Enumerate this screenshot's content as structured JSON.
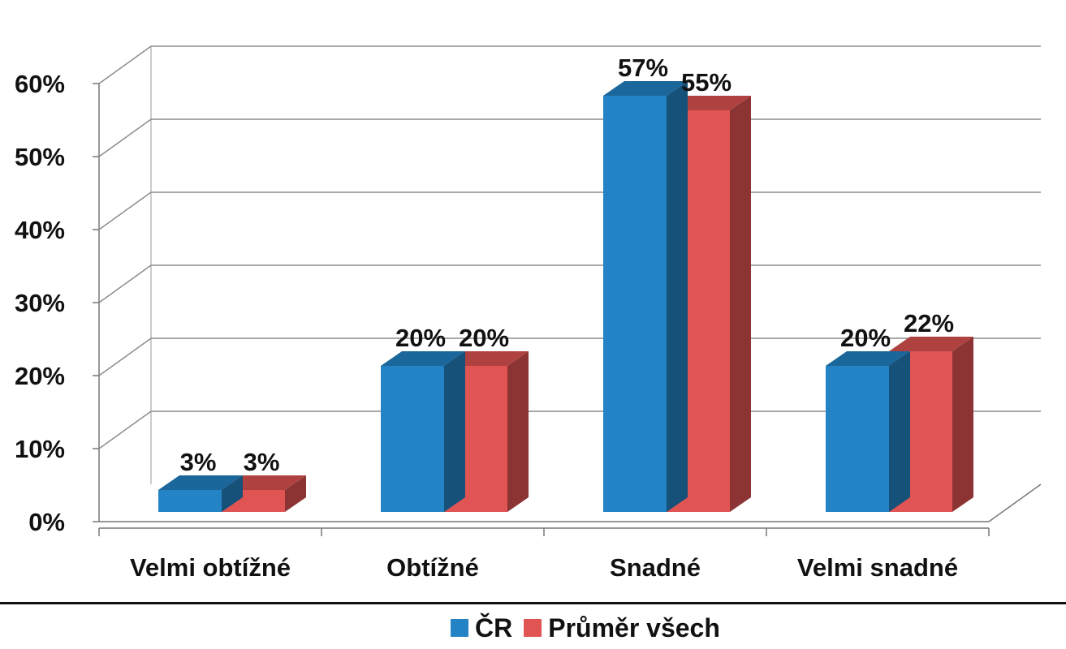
{
  "chart_data": {
    "type": "bar",
    "categories": [
      "Velmi obtížné",
      "Obtížné",
      "Snadné",
      "Velmi snadné"
    ],
    "series": [
      {
        "name": "ČR",
        "values": [
          3,
          20,
          57,
          20
        ],
        "labels": [
          "3%",
          "20%",
          "57%",
          "20%"
        ],
        "color": "#2383c5"
      },
      {
        "name": "Průměr všech",
        "values": [
          3,
          20,
          55,
          22
        ],
        "labels": [
          "3%",
          "20%",
          "55%",
          "22%"
        ],
        "color": "#e05453"
      }
    ],
    "ylim": [
      0,
      60
    ],
    "yticks": [
      "0%",
      "10%",
      "20%",
      "30%",
      "40%",
      "50%",
      "60%"
    ],
    "grid": true,
    "legend": "bottom",
    "style": "3d clustered column"
  }
}
